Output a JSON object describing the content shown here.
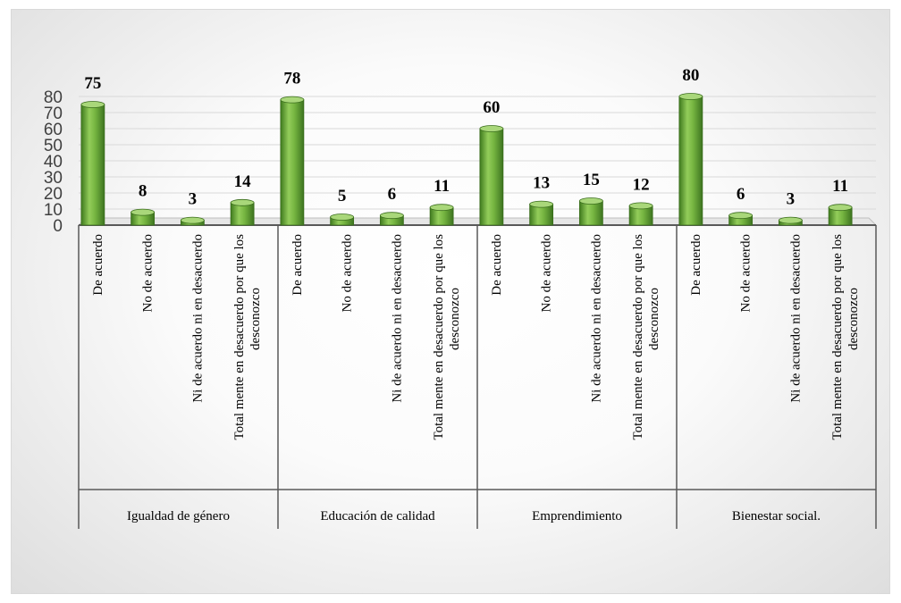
{
  "chart_data": {
    "type": "bar",
    "title": "",
    "xlabel": "",
    "ylabel": "",
    "ylim": [
      0,
      80
    ],
    "yticks": [
      0,
      10,
      20,
      30,
      40,
      50,
      60,
      70,
      80
    ],
    "grid": true,
    "legend": "none",
    "bar_color": "#6fae3c",
    "groups": [
      {
        "name": "Igualdad de género",
        "categories": [
          "De acuerdo",
          "No de acuerdo",
          "Ni de acuerdo ni en desacuerdo",
          [
            "Total mente en desacuerdo por que los",
            "desconozco"
          ]
        ],
        "values": [
          75,
          8,
          3,
          14
        ]
      },
      {
        "name": "Educación de calidad",
        "categories": [
          "De acuerdo",
          "No de acuerdo",
          "Ni de acuerdo ni en desacuerdo",
          [
            "Total mente en desacuerdo por que los",
            "desconozco"
          ]
        ],
        "values": [
          78,
          5,
          6,
          11
        ]
      },
      {
        "name": "Emprendimiento",
        "categories": [
          "De acuerdo",
          "No de acuerdo",
          "Ni de acuerdo ni en desacuerdo",
          [
            "Total mente en desacuerdo por que los",
            "desconozco"
          ]
        ],
        "values": [
          60,
          13,
          15,
          12
        ]
      },
      {
        "name": "Bienestar social.",
        "categories": [
          "De acuerdo",
          "No de acuerdo",
          "Ni de acuerdo ni en desacuerdo",
          [
            "Total mente en desacuerdo por que los",
            "desconozco"
          ]
        ],
        "values": [
          80,
          6,
          3,
          11
        ]
      }
    ]
  }
}
